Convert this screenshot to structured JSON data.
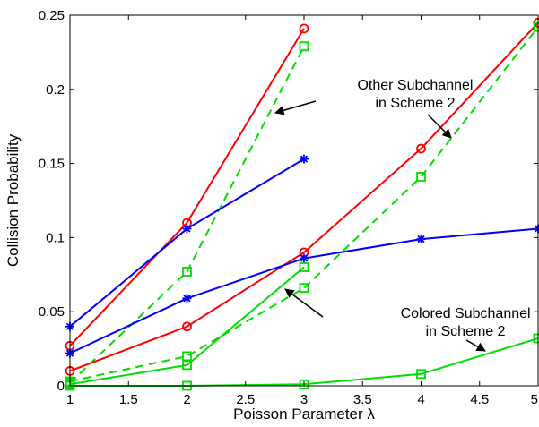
{
  "chart_data": {
    "type": "line",
    "xlabel": "Poisson Parameter λ",
    "ylabel": "Collision Probability",
    "xlim": [
      1,
      5
    ],
    "ylim": [
      0,
      0.25
    ],
    "xticks": [
      1,
      1.5,
      2,
      2.5,
      3,
      3.5,
      4,
      4.5,
      5
    ],
    "yticks": [
      0,
      0.05,
      0.1,
      0.15,
      0.2,
      0.25
    ],
    "xtick_labels": [
      "1",
      "1.5",
      "2",
      "2.5",
      "3",
      "3.5",
      "4",
      "4.5",
      "5"
    ],
    "ytick_labels": [
      "0",
      "0.05",
      "0.1",
      "0.15",
      "0.2",
      "0.25"
    ],
    "grid": false,
    "series": [
      {
        "color": "#ff0000",
        "marker": "circle",
        "dash": false,
        "x": [
          1,
          2,
          3
        ],
        "y": [
          0.027,
          0.11,
          0.241
        ]
      },
      {
        "color": "#00dd00",
        "marker": "square",
        "dash": true,
        "x": [
          1,
          2,
          3
        ],
        "y": [
          0.002,
          0.077,
          0.229
        ]
      },
      {
        "color": "#0000ff",
        "marker": "star",
        "dash": false,
        "x": [
          1,
          2,
          3
        ],
        "y": [
          0.04,
          0.106,
          0.153
        ]
      },
      {
        "color": "#ff0000",
        "marker": "circle",
        "dash": false,
        "x": [
          1,
          2,
          3,
          4,
          5
        ],
        "y": [
          0.01,
          0.04,
          0.09,
          0.16,
          0.245
        ]
      },
      {
        "color": "#00dd00",
        "marker": "square",
        "dash": true,
        "x": [
          1,
          2,
          3,
          4,
          5
        ],
        "y": [
          0.003,
          0.02,
          0.066,
          0.141,
          0.242
        ]
      },
      {
        "color": "#0000ff",
        "marker": "star",
        "dash": false,
        "x": [
          1,
          2,
          3,
          4,
          5
        ],
        "y": [
          0.022,
          0.059,
          0.086,
          0.099,
          0.106
        ]
      },
      {
        "color": "#00dd00",
        "marker": "square",
        "dash": false,
        "x": [
          1,
          2,
          3
        ],
        "y": [
          0.001,
          0.014,
          0.08
        ]
      },
      {
        "color": "#00dd00",
        "marker": "square",
        "dash": false,
        "x": [
          1,
          2,
          3,
          4,
          5
        ],
        "y": [
          0.0,
          0.0,
          0.001,
          0.008,
          0.032
        ]
      }
    ],
    "annotations": [
      {
        "lines": [
          "Other Subchannel",
          "in Scheme 2"
        ],
        "x": 3.95,
        "y": 0.2
      },
      {
        "lines": [
          "Colored Subchannel",
          "in Scheme 2"
        ],
        "x": 4.38,
        "y": 0.046
      }
    ]
  }
}
